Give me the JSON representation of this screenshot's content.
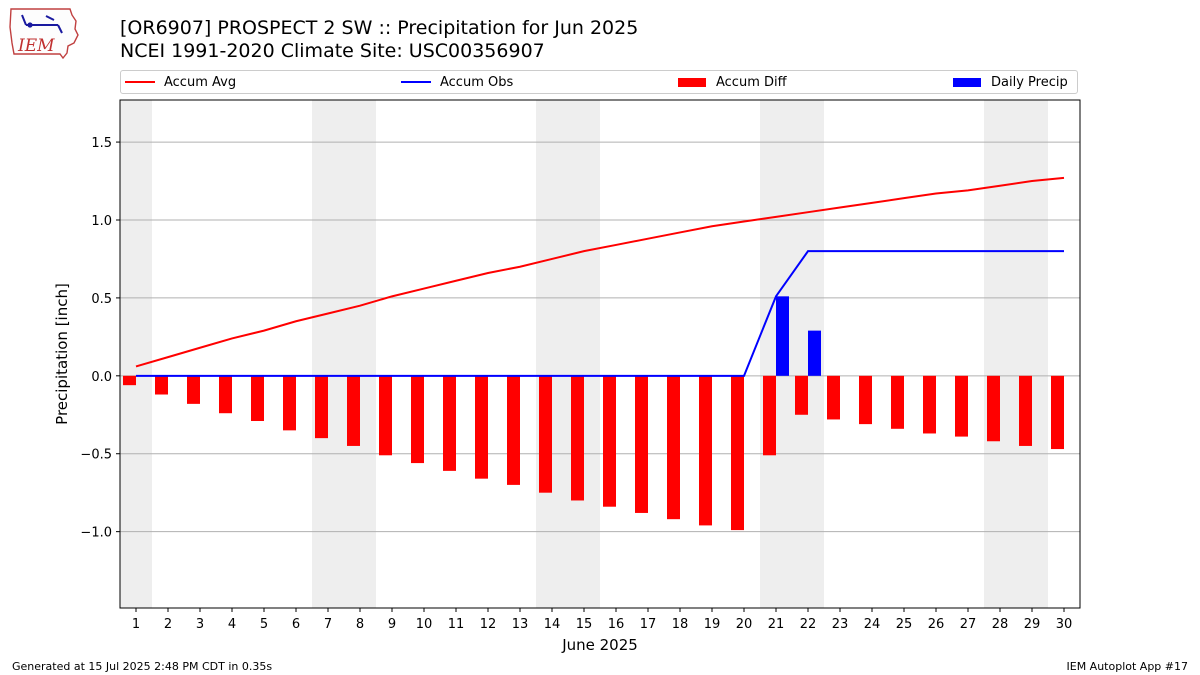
{
  "header": {
    "title_line1": "[OR6907] PROSPECT 2 SW :: Precipitation for Jun 2025",
    "title_line2": "NCEI 1991-2020 Climate Site: USC00356907"
  },
  "logo": {
    "text": "IEM",
    "icon": "iowa-state-outline-icon"
  },
  "legend": [
    {
      "label": "Accum Avg",
      "kind": "line",
      "color": "#ff0000"
    },
    {
      "label": "Accum Obs",
      "kind": "line",
      "color": "#0000ff"
    },
    {
      "label": "Accum Diff",
      "kind": "bar",
      "color": "#ff0000"
    },
    {
      "label": "Daily Precip",
      "kind": "bar",
      "color": "#0000ff"
    }
  ],
  "footer": {
    "left": "Generated at 15 Jul 2025 2:48 PM CDT in 0.35s",
    "right": "IEM Autoplot App #17"
  },
  "chart_data": {
    "type": "bar",
    "xlabel": "June 2025",
    "ylabel": "Precipitation [inch]",
    "xlim": [
      0.5,
      30.5
    ],
    "ylim": [
      -1.49,
      1.77
    ],
    "yticks": [
      -1.0,
      -0.5,
      0.0,
      0.5,
      1.0,
      1.5
    ],
    "ytick_labels": [
      "−1.0",
      "−0.5",
      "0.0",
      "0.5",
      "1.0",
      "1.5"
    ],
    "x": [
      1,
      2,
      3,
      4,
      5,
      6,
      7,
      8,
      9,
      10,
      11,
      12,
      13,
      14,
      15,
      16,
      17,
      18,
      19,
      20,
      21,
      22,
      23,
      24,
      25,
      26,
      27,
      28,
      29,
      30
    ],
    "grid": "horizontal",
    "weekend_shading": [
      [
        0.5,
        1.5
      ],
      [
        6.5,
        8.5
      ],
      [
        13.5,
        15.5
      ],
      [
        20.5,
        22.5
      ],
      [
        27.5,
        29.5
      ]
    ],
    "series": [
      {
        "name": "Accum Avg",
        "type": "line",
        "color": "#ff0000",
        "values": [
          0.06,
          0.12,
          0.18,
          0.24,
          0.29,
          0.35,
          0.4,
          0.45,
          0.51,
          0.56,
          0.61,
          0.66,
          0.7,
          0.75,
          0.8,
          0.84,
          0.88,
          0.92,
          0.96,
          0.99,
          1.02,
          1.05,
          1.08,
          1.11,
          1.14,
          1.17,
          1.19,
          1.22,
          1.25,
          1.27
        ]
      },
      {
        "name": "Accum Obs",
        "type": "line",
        "color": "#0000ff",
        "values": [
          0,
          0,
          0,
          0,
          0,
          0,
          0,
          0,
          0,
          0,
          0,
          0,
          0,
          0,
          0,
          0,
          0,
          0,
          0,
          0,
          0.51,
          0.8,
          0.8,
          0.8,
          0.8,
          0.8,
          0.8,
          0.8,
          0.8,
          0.8
        ]
      },
      {
        "name": "Accum Diff",
        "type": "bar",
        "color": "#ff0000",
        "values": [
          -0.06,
          -0.12,
          -0.18,
          -0.24,
          -0.29,
          -0.35,
          -0.4,
          -0.45,
          -0.51,
          -0.56,
          -0.61,
          -0.66,
          -0.7,
          -0.75,
          -0.8,
          -0.84,
          -0.88,
          -0.92,
          -0.96,
          -0.99,
          -0.51,
          -0.25,
          -0.28,
          -0.31,
          -0.34,
          -0.37,
          -0.39,
          -0.42,
          -0.45,
          -0.47
        ]
      },
      {
        "name": "Daily Precip",
        "type": "bar",
        "color": "#0000ff",
        "values": [
          0,
          0,
          0,
          0,
          0,
          0,
          0,
          0,
          0,
          0,
          0,
          0,
          0,
          0,
          0,
          0,
          0,
          0,
          0,
          0,
          0.51,
          0.29,
          0,
          0,
          0,
          0,
          0,
          0,
          0,
          0
        ]
      }
    ]
  }
}
